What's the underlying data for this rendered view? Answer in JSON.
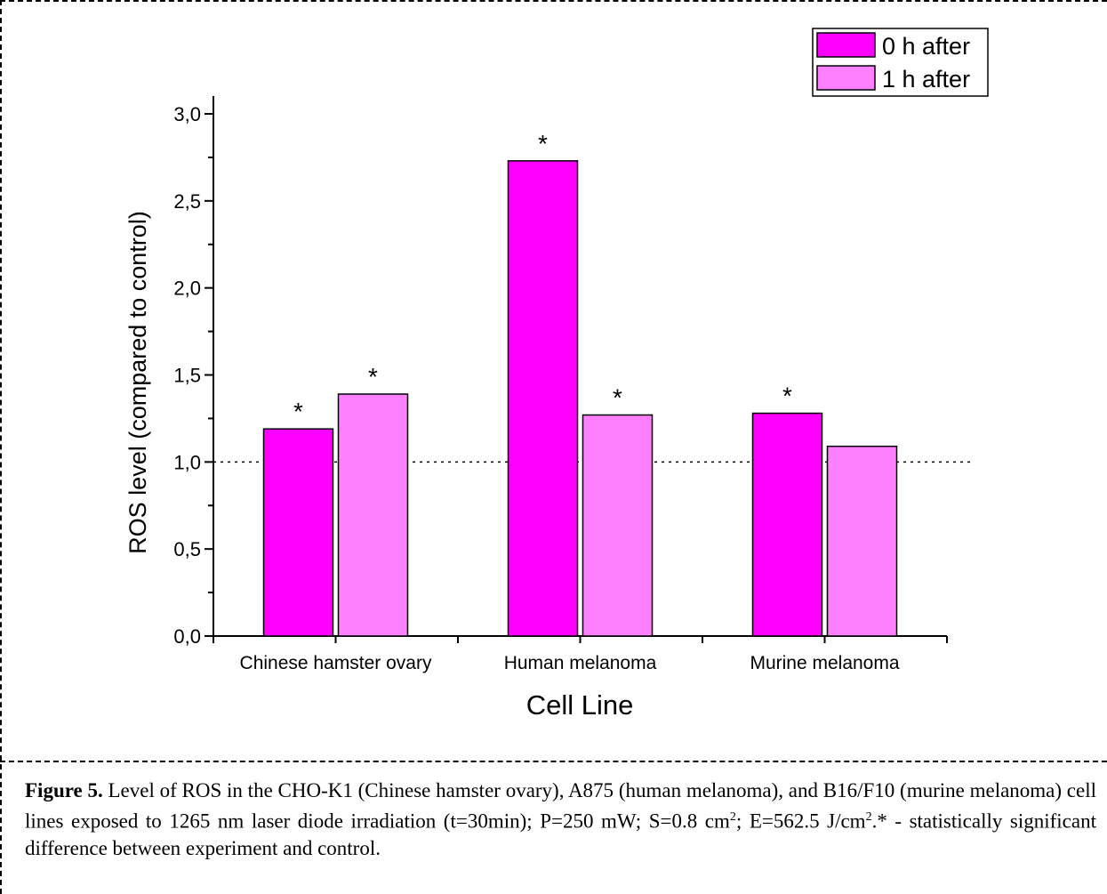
{
  "chart_data": {
    "type": "bar",
    "categories": [
      "Chinese hamster ovary",
      "Human melanoma",
      "Murine melanoma"
    ],
    "series": [
      {
        "name": "0 h after",
        "color": "#ff00ff",
        "values": [
          1.19,
          2.73,
          1.28
        ],
        "significant": [
          true,
          true,
          true
        ]
      },
      {
        "name": "1 h after",
        "color": "#ff80ff",
        "values": [
          1.39,
          1.27,
          1.09
        ],
        "significant": [
          true,
          true,
          false
        ]
      }
    ],
    "xlabel": "Cell Line",
    "ylabel": "ROS level (compared to control)",
    "ylim": [
      0,
      3.0
    ],
    "yticks": [
      "0,0",
      "0,5",
      "1,0",
      "1,5",
      "2,0",
      "2,5",
      "3,0"
    ],
    "reference_line": 1.0,
    "significance_marker": "*",
    "legend_position": "top-right",
    "grid": false
  },
  "caption": {
    "label": "Figure 5.",
    "text": " Level of ROS in the CHO-K1 (Chinese hamster ovary), A875 (human melanoma), and B16/F10 (murine melanoma) cell lines exposed to 1265 nm laser diode irradiation (t=30min); P=250 mW; S=0.8 cm",
    "sup1": "2",
    "text2": "; E=562.5 J/cm",
    "sup2": "2",
    "text3": ".* - statistically significant difference between experiment and control."
  }
}
